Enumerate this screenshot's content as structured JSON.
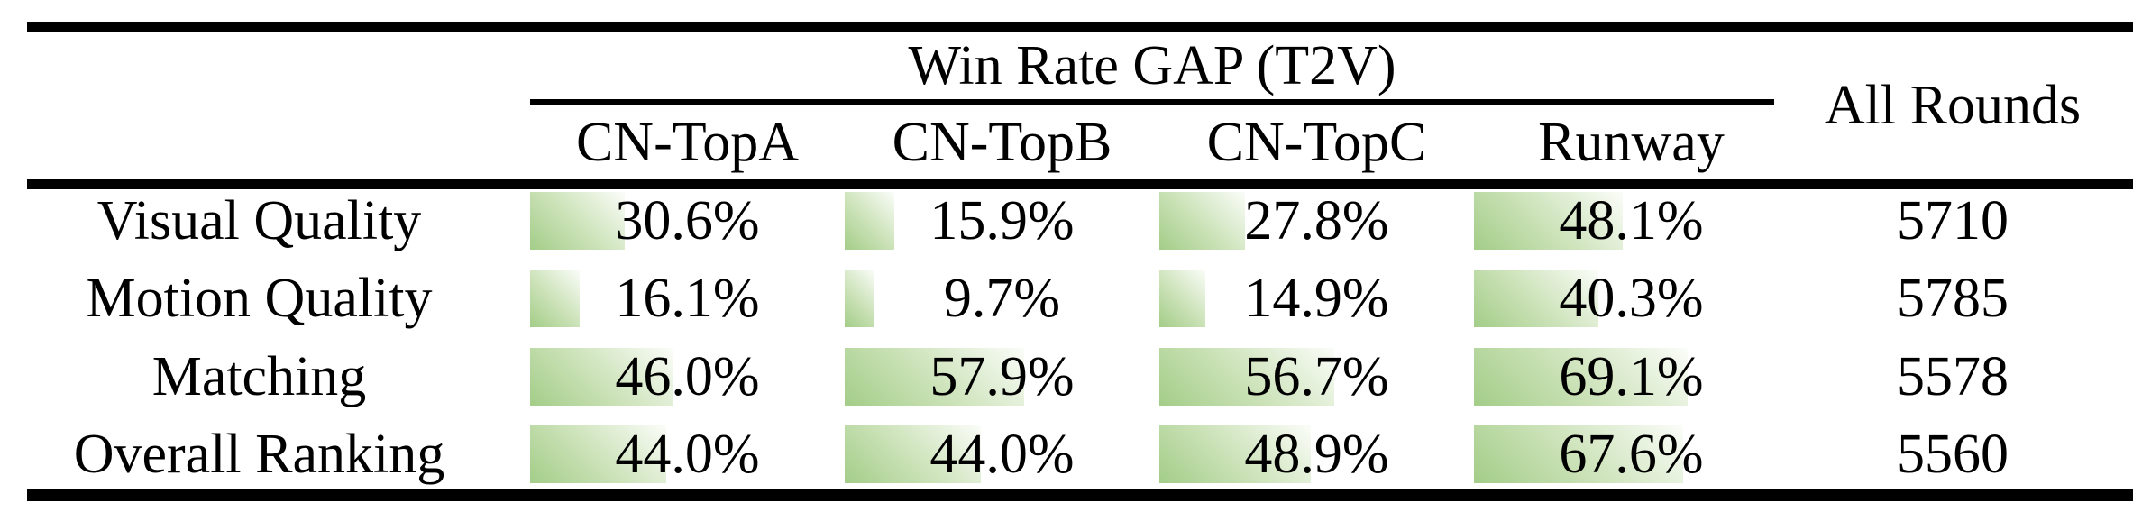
{
  "table": {
    "group_header": "Win Rate GAP (T2V)",
    "all_rounds_header": "All Rounds",
    "columns": [
      "CN-TopA",
      "CN-TopB",
      "CN-TopC",
      "Runway"
    ],
    "rows": [
      {
        "label": "Visual Quality",
        "cells": [
          {
            "text": "30.6%",
            "value": 30.6
          },
          {
            "text": "15.9%",
            "value": 15.9
          },
          {
            "text": "27.8%",
            "value": 27.8
          },
          {
            "text": "48.1%",
            "value": 48.1
          }
        ],
        "all_rounds": "5710"
      },
      {
        "label": "Motion Quality",
        "cells": [
          {
            "text": "16.1%",
            "value": 16.1
          },
          {
            "text": "9.7%",
            "value": 9.7
          },
          {
            "text": "14.9%",
            "value": 14.9
          },
          {
            "text": "40.3%",
            "value": 40.3
          }
        ],
        "all_rounds": "5785"
      },
      {
        "label": "Matching",
        "cells": [
          {
            "text": "46.0%",
            "value": 46.0
          },
          {
            "text": "57.9%",
            "value": 57.9
          },
          {
            "text": "56.7%",
            "value": 56.7
          },
          {
            "text": "69.1%",
            "value": 69.1
          }
        ],
        "all_rounds": "5578"
      },
      {
        "label": "Overall Ranking",
        "cells": [
          {
            "text": "44.0%",
            "value": 44.0
          },
          {
            "text": "44.0%",
            "value": 44.0
          },
          {
            "text": "48.9%",
            "value": 48.9
          },
          {
            "text": "67.6%",
            "value": 67.6
          }
        ],
        "all_rounds": "5560"
      }
    ],
    "colors": {
      "bar_green": "#a3cd88",
      "rule_black": "#000000"
    }
  },
  "chart_data": {
    "type": "table",
    "title": "Win Rate GAP (T2V)",
    "categories": [
      "Visual Quality",
      "Motion Quality",
      "Matching",
      "Overall Ranking"
    ],
    "series": [
      {
        "name": "CN-TopA",
        "values": [
          30.6,
          16.1,
          46.0,
          44.0
        ]
      },
      {
        "name": "CN-TopB",
        "values": [
          15.9,
          9.7,
          57.9,
          44.0
        ]
      },
      {
        "name": "CN-TopC",
        "values": [
          27.8,
          14.9,
          56.7,
          48.9
        ]
      },
      {
        "name": "Runway",
        "values": [
          48.1,
          40.3,
          69.1,
          67.6
        ]
      }
    ],
    "extra_column": {
      "name": "All Rounds",
      "values": [
        5710,
        5785,
        5578,
        5560
      ]
    },
    "value_unit": "%",
    "bar_scale": "cell bars proportional to percent, 100% ≈ column width"
  }
}
